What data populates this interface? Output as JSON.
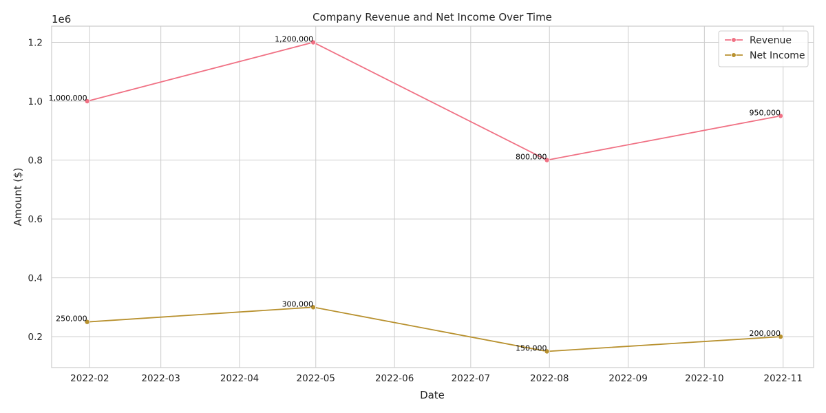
{
  "chart_data": {
    "type": "line",
    "title": "Company Revenue and Net Income Over Time",
    "xlabel": "Date",
    "ylabel": "Amount ($)",
    "y_offset_label": "1e6",
    "x_dates": [
      "2022-01-31",
      "2022-04-30",
      "2022-07-31",
      "2022-10-31"
    ],
    "x_range": [
      "2022-01-17",
      "2022-11-13"
    ],
    "y_range": [
      95000,
      1255000
    ],
    "x_ticks": [
      "2022-02-01",
      "2022-03-01",
      "2022-04-01",
      "2022-05-01",
      "2022-06-01",
      "2022-07-01",
      "2022-08-01",
      "2022-09-01",
      "2022-10-01",
      "2022-11-01"
    ],
    "x_tick_labels": [
      "2022-02",
      "2022-03",
      "2022-04",
      "2022-05",
      "2022-06",
      "2022-07",
      "2022-08",
      "2022-09",
      "2022-10",
      "2022-11"
    ],
    "y_ticks": [
      200000,
      400000,
      600000,
      800000,
      1000000,
      1200000
    ],
    "y_tick_labels": [
      "0.2",
      "0.4",
      "0.6",
      "0.8",
      "1.0",
      "1.2"
    ],
    "grid": true,
    "legend_position": "top-right",
    "series": [
      {
        "name": "Revenue",
        "color": "#f07184",
        "values": [
          1000000,
          1200000,
          800000,
          950000
        ],
        "labels": [
          "1,000,000",
          "1,200,000",
          "800,000",
          "950,000"
        ]
      },
      {
        "name": "Net Income",
        "color": "#b8912f",
        "values": [
          250000,
          300000,
          150000,
          200000
        ],
        "labels": [
          "250,000",
          "300,000",
          "150,000",
          "200,000"
        ]
      }
    ]
  }
}
